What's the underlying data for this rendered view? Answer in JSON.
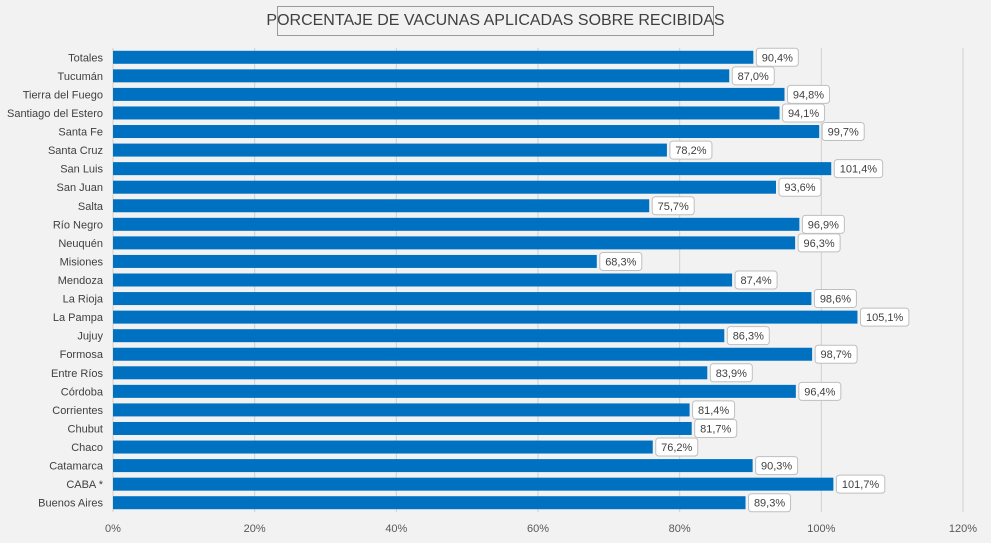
{
  "chart_data": {
    "type": "bar",
    "orientation": "horizontal",
    "title": "PORCENTAJE DE VACUNAS APLICADAS SOBRE RECIBIDAS",
    "xlim": [
      0,
      120
    ],
    "x_ticks": [
      "0%",
      "20%",
      "40%",
      "60%",
      "80%",
      "100%",
      "120%"
    ],
    "grid": "vertical",
    "bar_color": "#0070c0",
    "categories": [
      "Totales",
      "Tucumán",
      "Tierra del Fuego",
      "Santiago del Estero",
      "Santa Fe",
      "Santa Cruz",
      "San Luis",
      "San Juan",
      "Salta",
      "Río Negro",
      "Neuquén",
      "Misiones",
      "Mendoza",
      "La Rioja",
      "La Pampa",
      "Jujuy",
      "Formosa",
      "Entre Ríos",
      "Córdoba",
      "Corrientes",
      "Chubut",
      "Chaco",
      "Catamarca",
      "CABA *",
      "Buenos Aires"
    ],
    "values": [
      90.4,
      87.0,
      94.8,
      94.1,
      99.7,
      78.2,
      101.4,
      93.6,
      75.7,
      96.9,
      96.3,
      68.3,
      87.4,
      98.6,
      105.1,
      86.3,
      98.7,
      83.9,
      96.4,
      81.4,
      81.7,
      76.2,
      90.3,
      101.7,
      89.3
    ],
    "data_labels": [
      "90,4%",
      "87,0%",
      "94,8%",
      "94,1%",
      "99,7%",
      "78,2%",
      "101,4%",
      "93,6%",
      "75,7%",
      "96,9%",
      "96,3%",
      "68,3%",
      "87,4%",
      "98,6%",
      "105,1%",
      "86,3%",
      "98,7%",
      "83,9%",
      "96,4%",
      "81,4%",
      "81,7%",
      "76,2%",
      "90,3%",
      "101,7%",
      "89,3%"
    ]
  }
}
